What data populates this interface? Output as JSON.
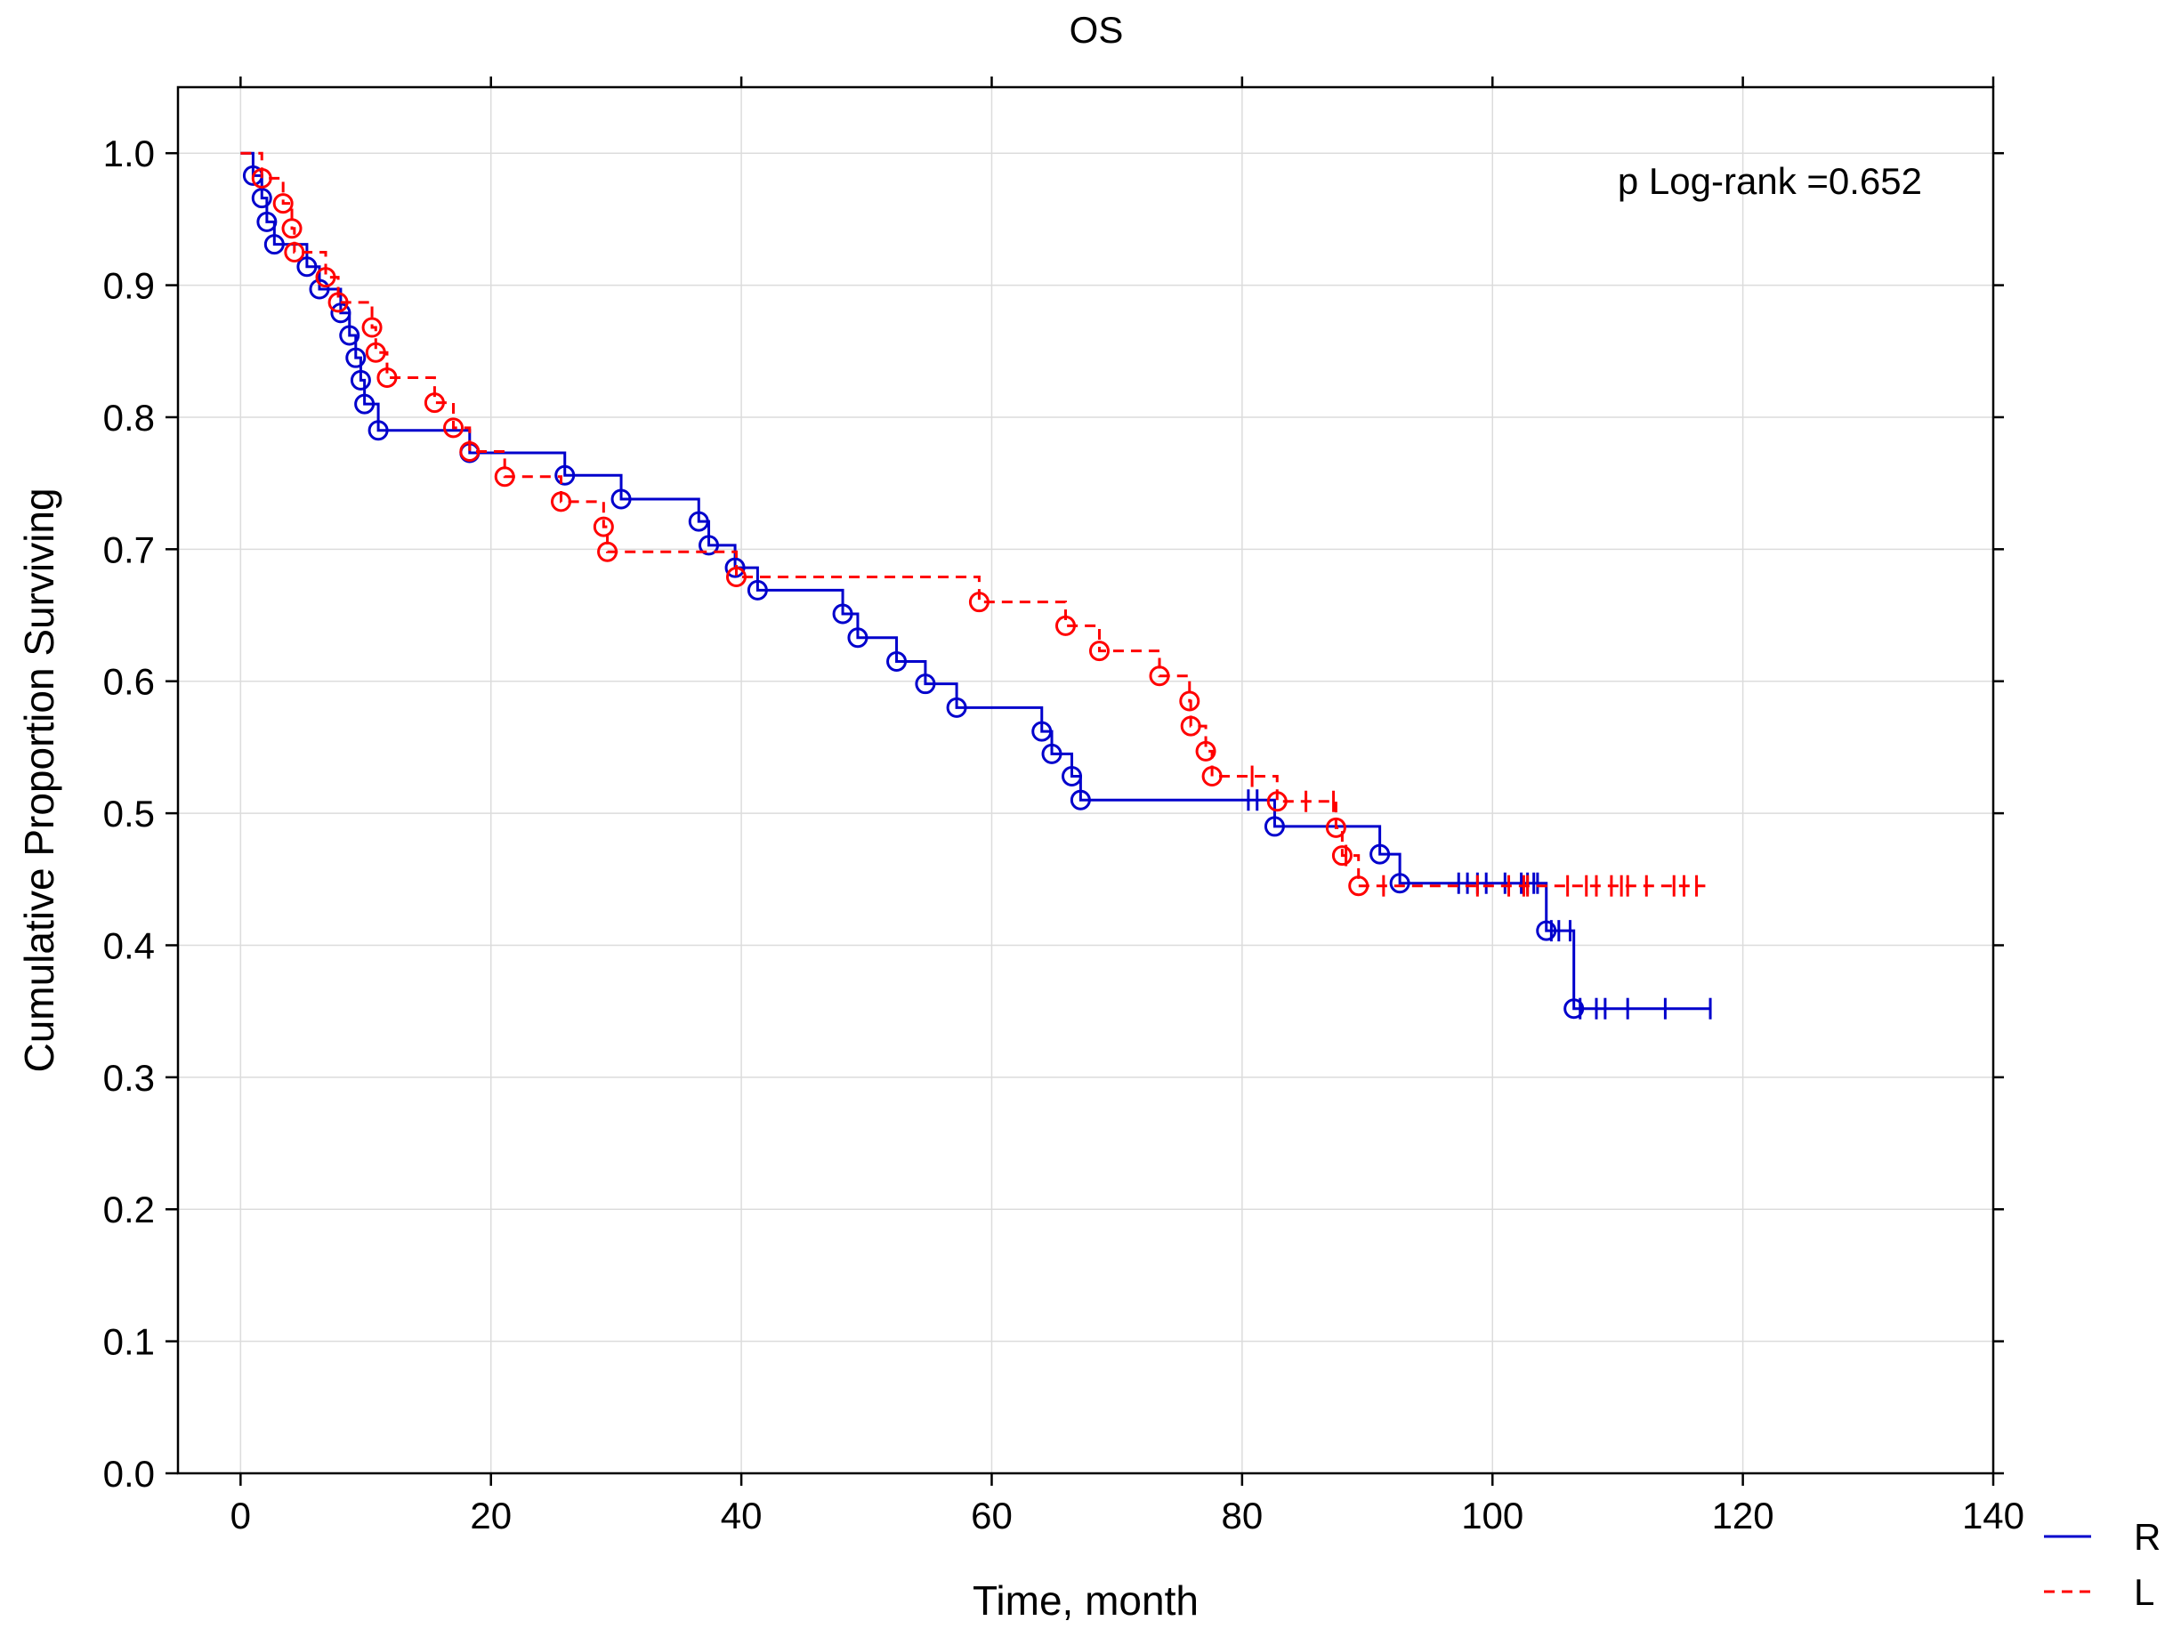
{
  "chart_data": {
    "type": "line",
    "title": "OS",
    "xlabel": "Time, month",
    "ylabel": "Cumulative Proportion Surviving",
    "xlim": [
      -5,
      140
    ],
    "ylim": [
      0,
      1.05
    ],
    "xticks": [
      0,
      20,
      40,
      60,
      80,
      100,
      120,
      140
    ],
    "yticks": [
      0.0,
      0.1,
      0.2,
      0.3,
      0.4,
      0.5,
      0.6,
      0.7,
      0.8,
      0.9,
      1.0
    ],
    "ytick_labels": [
      "0.0",
      "0.1",
      "0.2",
      "0.3",
      "0.4",
      "0.5",
      "0.6",
      "0.7",
      "0.8",
      "0.9",
      "1.0"
    ],
    "grid": true,
    "annotation": "p Log-rank =0.652",
    "legend_position": "bottom-right-outside",
    "series": [
      {
        "name": "R",
        "color": "#0000cc",
        "dash": "solid",
        "events": [
          [
            1.0,
            0.983
          ],
          [
            1.7,
            0.966
          ],
          [
            2.1,
            0.948
          ],
          [
            2.7,
            0.931
          ],
          [
            5.3,
            0.914
          ],
          [
            6.3,
            0.897
          ],
          [
            8.0,
            0.879
          ],
          [
            8.7,
            0.862
          ],
          [
            9.2,
            0.845
          ],
          [
            9.6,
            0.828
          ],
          [
            9.9,
            0.81
          ],
          [
            11.0,
            0.79
          ],
          [
            18.3,
            0.773
          ],
          [
            25.9,
            0.756
          ],
          [
            30.4,
            0.738
          ],
          [
            36.6,
            0.721
          ],
          [
            37.4,
            0.703
          ],
          [
            39.5,
            0.686
          ],
          [
            41.3,
            0.669
          ],
          [
            48.1,
            0.651
          ],
          [
            49.3,
            0.633
          ],
          [
            52.4,
            0.615
          ],
          [
            54.7,
            0.598
          ],
          [
            57.2,
            0.58
          ],
          [
            64.0,
            0.562
          ],
          [
            64.8,
            0.545
          ],
          [
            66.4,
            0.528
          ],
          [
            67.1,
            0.51
          ],
          [
            82.6,
            0.49
          ],
          [
            91.0,
            0.469
          ],
          [
            92.6,
            0.447
          ],
          [
            104.3,
            0.411
          ],
          [
            106.5,
            0.352
          ]
        ],
        "censored": [
          80.5,
          81.2,
          97.3,
          98.0,
          98.8,
          99.5,
          101.0,
          102.3,
          102.8,
          103.3,
          103.6,
          104.7,
          105.3,
          106.2,
          107.0,
          108.3,
          109.0,
          110.8,
          113.8,
          117.4
        ],
        "end": 117.5
      },
      {
        "name": "L",
        "color": "#ff0000",
        "dash": "dashed",
        "events": [
          [
            1.7,
            0.981
          ],
          [
            3.4,
            0.962
          ],
          [
            4.1,
            0.943
          ],
          [
            4.3,
            0.925
          ],
          [
            6.8,
            0.906
          ],
          [
            7.8,
            0.887
          ],
          [
            10.5,
            0.868
          ],
          [
            10.8,
            0.849
          ],
          [
            11.7,
            0.83
          ],
          [
            15.5,
            0.811
          ],
          [
            17.0,
            0.792
          ],
          [
            18.3,
            0.774
          ],
          [
            21.1,
            0.755
          ],
          [
            25.6,
            0.736
          ],
          [
            29.0,
            0.717
          ],
          [
            29.3,
            0.698
          ],
          [
            39.6,
            0.679
          ],
          [
            59.0,
            0.66
          ],
          [
            65.9,
            0.642
          ],
          [
            68.6,
            0.623
          ],
          [
            73.4,
            0.604
          ],
          [
            75.8,
            0.585
          ],
          [
            75.9,
            0.566
          ],
          [
            77.1,
            0.547
          ],
          [
            77.6,
            0.528
          ],
          [
            82.8,
            0.509
          ],
          [
            87.5,
            0.489
          ],
          [
            88.0,
            0.468
          ],
          [
            89.3,
            0.445
          ]
        ],
        "censored": [
          80.8,
          85.1,
          87.3,
          88.3,
          91.3,
          98.8,
          101.3,
          102.5,
          102.8,
          106.0,
          107.5,
          108.3,
          109.5,
          110.3,
          110.8,
          112.3,
          114.5,
          115.3,
          116.3
        ],
        "end": 117
      }
    ]
  }
}
